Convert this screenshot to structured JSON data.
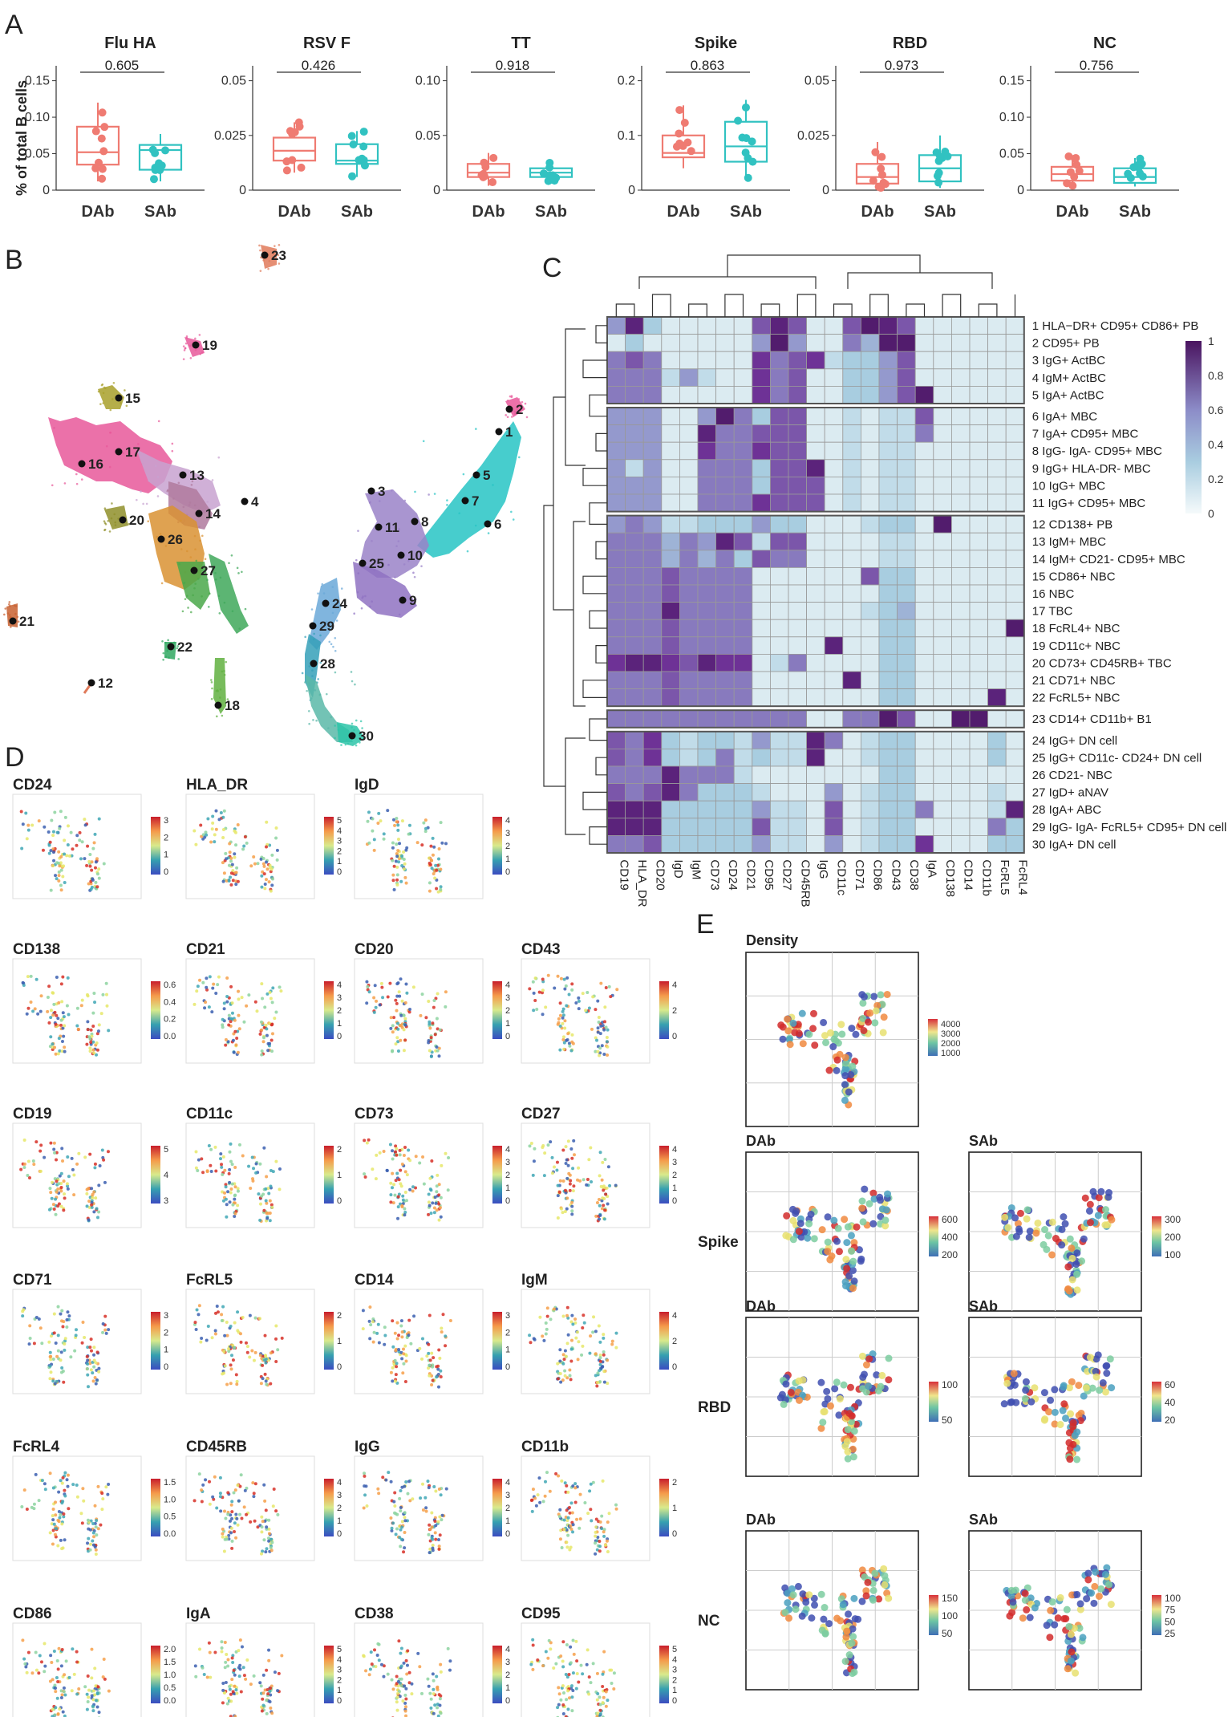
{
  "panel_letters": {
    "a": "A",
    "b": "B",
    "c": "C",
    "d": "D",
    "e": "E"
  },
  "panel_a": {
    "y_axis_label": "% of total B cells",
    "groups": [
      "DAb",
      "SAb"
    ],
    "group_colors": [
      "#ef7b72",
      "#31c2c1"
    ],
    "plots": [
      {
        "title": "Flu HA",
        "pval": "0.605",
        "ymax": 0.15,
        "ticks": [
          "0",
          "0.05",
          "0.10",
          "0.15"
        ],
        "box": [
          {
            "q1": 0.035,
            "med": 0.052,
            "q3": 0.087,
            "lo": 0.012,
            "hi": 0.12
          },
          {
            "q1": 0.028,
            "med": 0.055,
            "q3": 0.062,
            "lo": 0.012,
            "hi": 0.077
          }
        ]
      },
      {
        "title": "RSV F",
        "pval": "0.426",
        "ymax": 0.05,
        "ticks": [
          "0",
          "0.025",
          "0.05"
        ],
        "box": [
          {
            "q1": 0.0135,
            "med": 0.018,
            "q3": 0.024,
            "lo": 0.008,
            "hi": 0.031
          },
          {
            "q1": 0.012,
            "med": 0.0135,
            "q3": 0.021,
            "lo": 0.006,
            "hi": 0.027
          }
        ]
      },
      {
        "title": "TT",
        "pval": "0.918",
        "ymax": 0.1,
        "ticks": [
          "0",
          "0.05",
          "0.10"
        ],
        "box": [
          {
            "q1": 0.012,
            "med": 0.016,
            "q3": 0.024,
            "lo": 0.004,
            "hi": 0.034
          },
          {
            "q1": 0.012,
            "med": 0.016,
            "q3": 0.02,
            "lo": 0.006,
            "hi": 0.026
          }
        ]
      },
      {
        "title": "Spike",
        "pval": "0.863",
        "ymax": 0.2,
        "ticks": [
          "0",
          "0.1",
          "0.2"
        ],
        "box": [
          {
            "q1": 0.06,
            "med": 0.068,
            "q3": 0.1,
            "lo": 0.04,
            "hi": 0.155
          },
          {
            "q1": 0.052,
            "med": 0.08,
            "q3": 0.125,
            "lo": 0.018,
            "hi": 0.165
          }
        ]
      },
      {
        "title": "RBD",
        "pval": "0.973",
        "ymax": 0.05,
        "ticks": [
          "0",
          "0.025",
          "0.05"
        ],
        "box": [
          {
            "q1": 0.003,
            "med": 0.006,
            "q3": 0.012,
            "lo": 0.001,
            "hi": 0.022
          },
          {
            "q1": 0.004,
            "med": 0.01,
            "q3": 0.016,
            "lo": 0.001,
            "hi": 0.025
          }
        ]
      },
      {
        "title": "NC",
        "pval": "0.756",
        "ymax": 0.15,
        "ticks": [
          "0",
          "0.05",
          "0.10",
          "0.15"
        ],
        "box": [
          {
            "q1": 0.013,
            "med": 0.022,
            "q3": 0.032,
            "lo": 0.006,
            "hi": 0.048
          },
          {
            "q1": 0.01,
            "med": 0.018,
            "q3": 0.03,
            "lo": 0.005,
            "hi": 0.044
          }
        ]
      }
    ]
  },
  "panel_b": {
    "cluster_labels": [
      "1",
      "2",
      "3",
      "4",
      "5",
      "6",
      "7",
      "8",
      "9",
      "10",
      "11",
      "12",
      "13",
      "14",
      "15",
      "16",
      "17",
      "18",
      "19",
      "20",
      "21",
      "22",
      "23",
      "24",
      "25",
      "26",
      "27",
      "28",
      "29",
      "30"
    ]
  },
  "panel_c": {
    "row_labels": [
      "1 HLA−DR+ CD95+ CD86+ PB",
      "2 CD95+ PB",
      "3 IgG+ ActBC",
      "4 IgM+ ActBC",
      "5 IgA+ ActBC",
      "6 IgA+ MBC",
      "7 IgA+ CD95+ MBC",
      "8 IgG- IgA- CD95+ MBC",
      "9 IgG+ HLA-DR- MBC",
      "10 IgG+ MBC",
      "11 IgG+ CD95+ MBC",
      "12 CD138+ PB",
      "13 IgM+ MBC",
      "14 IgM+ CD21- CD95+ MBC",
      "15 CD86+ NBC",
      "16 NBC",
      "17 TBC",
      "18 FcRL4+ NBC",
      "19 CD11c+ NBC",
      "20 CD73+ CD45RB+ TBC",
      "21 CD71+ NBC",
      "22 FcRL5+ NBC",
      "23 CD14+ CD11b+ B1",
      "24 IgG+ DN cell",
      "25 IgG+ CD11c- CD24+ DN cell",
      "26 CD21- NBC",
      "27 IgD+ aNAV",
      "28 IgA+ ABC",
      "29 IgG- IgA- FcRL5+ CD95+ DN cell",
      "30 IgA+ DN cell"
    ],
    "col_labels": [
      "CD19",
      "HLA_DR",
      "CD20",
      "IgD",
      "IgM",
      "CD73",
      "CD24",
      "CD21",
      "CD95",
      "CD27",
      "CD45RB",
      "IgG",
      "CD11c",
      "CD71",
      "CD86",
      "CD43",
      "CD38",
      "IgA",
      "CD138",
      "CD14",
      "CD11b",
      "FcRL5",
      "FcRL4"
    ],
    "legend_ticks": [
      "1",
      "0.8",
      "0.6",
      "0.4",
      "0.2",
      "0"
    ],
    "values": [
      [
        0.5,
        0.9,
        0.3,
        0.1,
        0.1,
        0.1,
        0.1,
        0.1,
        0.7,
        0.9,
        0.7,
        0.1,
        0.1,
        0.7,
        0.95,
        0.9,
        0.7,
        0.1,
        0.1,
        0.1,
        0.1,
        0.1,
        0.1
      ],
      [
        0.1,
        0.3,
        0.1,
        0.1,
        0.1,
        0.1,
        0.1,
        0.1,
        0.5,
        0.95,
        0.5,
        0.1,
        0.1,
        0.6,
        0.4,
        0.95,
        0.95,
        0.1,
        0.1,
        0.1,
        0.1,
        0.1,
        0.1
      ],
      [
        0.6,
        0.7,
        0.6,
        0.1,
        0.1,
        0.1,
        0.1,
        0.1,
        0.8,
        0.6,
        0.7,
        0.8,
        0.2,
        0.3,
        0.3,
        0.5,
        0.7,
        0.1,
        0.1,
        0.1,
        0.1,
        0.1,
        0.1
      ],
      [
        0.6,
        0.6,
        0.6,
        0.2,
        0.5,
        0.2,
        0.1,
        0.1,
        0.8,
        0.6,
        0.7,
        0.1,
        0.1,
        0.3,
        0.3,
        0.5,
        0.7,
        0.1,
        0.1,
        0.1,
        0.1,
        0.1,
        0.1
      ],
      [
        0.6,
        0.6,
        0.6,
        0.1,
        0.1,
        0.1,
        0.1,
        0.1,
        0.8,
        0.6,
        0.7,
        0.1,
        0.1,
        0.3,
        0.3,
        0.5,
        0.7,
        0.95,
        0.1,
        0.1,
        0.1,
        0.1,
        0.1
      ],
      [
        0.5,
        0.5,
        0.5,
        0.1,
        0.1,
        0.5,
        0.95,
        0.6,
        0.3,
        0.7,
        0.7,
        0.1,
        0.1,
        0.2,
        0.1,
        0.2,
        0.2,
        0.7,
        0.1,
        0.1,
        0.1,
        0.1,
        0.1
      ],
      [
        0.5,
        0.5,
        0.5,
        0.1,
        0.1,
        0.9,
        0.6,
        0.6,
        0.7,
        0.7,
        0.7,
        0.1,
        0.1,
        0.2,
        0.1,
        0.2,
        0.2,
        0.6,
        0.1,
        0.1,
        0.1,
        0.1,
        0.1
      ],
      [
        0.5,
        0.5,
        0.5,
        0.1,
        0.1,
        0.8,
        0.6,
        0.6,
        0.8,
        0.7,
        0.7,
        0.1,
        0.1,
        0.2,
        0.1,
        0.2,
        0.2,
        0.1,
        0.1,
        0.1,
        0.1,
        0.1,
        0.1
      ],
      [
        0.5,
        0.2,
        0.5,
        0.1,
        0.1,
        0.6,
        0.6,
        0.6,
        0.3,
        0.7,
        0.7,
        0.9,
        0.1,
        0.2,
        0.1,
        0.2,
        0.2,
        0.1,
        0.1,
        0.1,
        0.1,
        0.1,
        0.1
      ],
      [
        0.5,
        0.5,
        0.5,
        0.1,
        0.1,
        0.6,
        0.6,
        0.6,
        0.3,
        0.7,
        0.7,
        0.7,
        0.1,
        0.2,
        0.1,
        0.2,
        0.2,
        0.1,
        0.1,
        0.1,
        0.1,
        0.1,
        0.1
      ],
      [
        0.5,
        0.5,
        0.5,
        0.1,
        0.1,
        0.6,
        0.6,
        0.6,
        0.8,
        0.7,
        0.7,
        0.7,
        0.1,
        0.2,
        0.1,
        0.2,
        0.2,
        0.1,
        0.1,
        0.1,
        0.1,
        0.1,
        0.1
      ],
      [
        0.5,
        0.6,
        0.5,
        0.2,
        0.2,
        0.3,
        0.3,
        0.3,
        0.5,
        0.3,
        0.3,
        0.1,
        0.1,
        0.1,
        0.2,
        0.3,
        0.3,
        0.1,
        0.95,
        0.1,
        0.1,
        0.1,
        0.1
      ],
      [
        0.6,
        0.6,
        0.6,
        0.4,
        0.6,
        0.5,
        0.9,
        0.7,
        0.2,
        0.7,
        0.7,
        0.1,
        0.1,
        0.1,
        0.1,
        0.2,
        0.2,
        0.1,
        0.1,
        0.1,
        0.1,
        0.1,
        0.1
      ],
      [
        0.6,
        0.6,
        0.6,
        0.4,
        0.6,
        0.4,
        0.6,
        0.3,
        0.7,
        0.6,
        0.6,
        0.1,
        0.1,
        0.1,
        0.1,
        0.2,
        0.2,
        0.1,
        0.1,
        0.1,
        0.1,
        0.1,
        0.1
      ],
      [
        0.6,
        0.6,
        0.6,
        0.7,
        0.6,
        0.6,
        0.6,
        0.6,
        0.1,
        0.1,
        0.1,
        0.1,
        0.1,
        0.1,
        0.7,
        0.3,
        0.3,
        0.1,
        0.1,
        0.1,
        0.1,
        0.1,
        0.1
      ],
      [
        0.6,
        0.6,
        0.6,
        0.7,
        0.6,
        0.6,
        0.6,
        0.6,
        0.1,
        0.1,
        0.1,
        0.1,
        0.1,
        0.1,
        0.1,
        0.3,
        0.3,
        0.1,
        0.1,
        0.1,
        0.1,
        0.1,
        0.1
      ],
      [
        0.6,
        0.6,
        0.6,
        0.9,
        0.6,
        0.6,
        0.6,
        0.6,
        0.1,
        0.1,
        0.1,
        0.1,
        0.1,
        0.1,
        0.2,
        0.3,
        0.4,
        0.1,
        0.1,
        0.1,
        0.1,
        0.1,
        0.1
      ],
      [
        0.6,
        0.6,
        0.6,
        0.7,
        0.6,
        0.6,
        0.6,
        0.6,
        0.1,
        0.1,
        0.1,
        0.1,
        0.1,
        0.1,
        0.1,
        0.3,
        0.3,
        0.1,
        0.1,
        0.1,
        0.1,
        0.1,
        0.95
      ],
      [
        0.6,
        0.6,
        0.6,
        0.7,
        0.6,
        0.6,
        0.6,
        0.6,
        0.1,
        0.1,
        0.1,
        0.1,
        0.9,
        0.1,
        0.1,
        0.3,
        0.3,
        0.1,
        0.1,
        0.1,
        0.1,
        0.1,
        0.1
      ],
      [
        0.8,
        0.9,
        0.9,
        0.8,
        0.7,
        0.9,
        0.8,
        0.8,
        0.1,
        0.2,
        0.6,
        0.1,
        0.1,
        0.1,
        0.1,
        0.3,
        0.3,
        0.1,
        0.1,
        0.1,
        0.1,
        0.1,
        0.1
      ],
      [
        0.6,
        0.6,
        0.6,
        0.7,
        0.6,
        0.6,
        0.6,
        0.6,
        0.1,
        0.1,
        0.1,
        0.1,
        0.1,
        0.9,
        0.1,
        0.3,
        0.3,
        0.1,
        0.1,
        0.1,
        0.1,
        0.1,
        0.1
      ],
      [
        0.6,
        0.6,
        0.6,
        0.7,
        0.6,
        0.6,
        0.6,
        0.6,
        0.1,
        0.1,
        0.1,
        0.1,
        0.1,
        0.1,
        0.1,
        0.3,
        0.3,
        0.1,
        0.1,
        0.1,
        0.1,
        0.9,
        0.1
      ],
      [
        0.6,
        0.6,
        0.6,
        0.6,
        0.6,
        0.6,
        0.6,
        0.6,
        0.6,
        0.6,
        0.6,
        0.1,
        0.1,
        0.6,
        0.6,
        0.95,
        0.7,
        0.1,
        0.1,
        0.95,
        0.95,
        0.1,
        0.1
      ],
      [
        0.7,
        0.6,
        0.8,
        0.3,
        0.2,
        0.3,
        0.3,
        0.2,
        0.5,
        0.2,
        0.2,
        0.9,
        0.6,
        0.1,
        0.2,
        0.3,
        0.3,
        0.1,
        0.1,
        0.1,
        0.1,
        0.3,
        0.1
      ],
      [
        0.7,
        0.6,
        0.8,
        0.3,
        0.2,
        0.3,
        0.6,
        0.2,
        0.3,
        0.2,
        0.2,
        0.9,
        0.1,
        0.1,
        0.2,
        0.3,
        0.3,
        0.1,
        0.1,
        0.1,
        0.1,
        0.3,
        0.1
      ],
      [
        0.6,
        0.6,
        0.6,
        0.9,
        0.6,
        0.6,
        0.6,
        0.2,
        0.1,
        0.1,
        0.1,
        0.1,
        0.1,
        0.1,
        0.1,
        0.3,
        0.3,
        0.1,
        0.1,
        0.1,
        0.1,
        0.1,
        0.1
      ],
      [
        0.7,
        0.6,
        0.7,
        0.9,
        0.6,
        0.3,
        0.3,
        0.3,
        0.2,
        0.1,
        0.1,
        0.1,
        0.5,
        0.1,
        0.2,
        0.3,
        0.3,
        0.1,
        0.1,
        0.1,
        0.1,
        0.2,
        0.1
      ],
      [
        0.9,
        0.9,
        0.9,
        0.3,
        0.3,
        0.3,
        0.3,
        0.3,
        0.5,
        0.2,
        0.2,
        0.1,
        0.7,
        0.1,
        0.2,
        0.3,
        0.3,
        0.6,
        0.1,
        0.1,
        0.1,
        0.2,
        0.9
      ],
      [
        0.9,
        0.9,
        0.9,
        0.3,
        0.3,
        0.3,
        0.3,
        0.3,
        0.7,
        0.2,
        0.2,
        0.1,
        0.7,
        0.1,
        0.2,
        0.3,
        0.3,
        0.1,
        0.1,
        0.1,
        0.1,
        0.6,
        0.3
      ],
      [
        0.6,
        0.6,
        0.7,
        0.3,
        0.3,
        0.3,
        0.3,
        0.3,
        0.5,
        0.2,
        0.2,
        0.1,
        0.5,
        0.1,
        0.2,
        0.3,
        0.3,
        0.8,
        0.1,
        0.1,
        0.1,
        0.3,
        0.3
      ]
    ]
  },
  "panel_d": {
    "plots": [
      {
        "title": "CD24",
        "ticks": [
          "3",
          "2",
          "1",
          "0"
        ]
      },
      {
        "title": "HLA_DR",
        "ticks": [
          "5",
          "4",
          "3",
          "2",
          "1",
          "0"
        ]
      },
      {
        "title": "IgD",
        "ticks": [
          "4",
          "3",
          "2",
          "1",
          "0"
        ]
      },
      {
        "title": "CD138",
        "ticks": [
          "0.6",
          "0.4",
          "0.2",
          "0.0"
        ]
      },
      {
        "title": "CD21",
        "ticks": [
          "4",
          "3",
          "2",
          "1",
          "0"
        ]
      },
      {
        "title": "CD20",
        "ticks": [
          "4",
          "3",
          "2",
          "1",
          "0"
        ]
      },
      {
        "title": "CD43",
        "ticks": [
          "4",
          "2",
          "0"
        ]
      },
      {
        "title": "CD19",
        "ticks": [
          "5",
          "4",
          "3"
        ]
      },
      {
        "title": "CD11c",
        "ticks": [
          "2",
          "1",
          "0"
        ]
      },
      {
        "title": "CD73",
        "ticks": [
          "4",
          "3",
          "2",
          "1",
          "0"
        ]
      },
      {
        "title": "CD27",
        "ticks": [
          "4",
          "3",
          "2",
          "1",
          "0"
        ]
      },
      {
        "title": "CD71",
        "ticks": [
          "3",
          "2",
          "1",
          "0"
        ]
      },
      {
        "title": "FcRL5",
        "ticks": [
          "2",
          "1",
          "0"
        ]
      },
      {
        "title": "CD14",
        "ticks": [
          "3",
          "2",
          "1",
          "0"
        ]
      },
      {
        "title": "IgM",
        "ticks": [
          "4",
          "2",
          "0"
        ]
      },
      {
        "title": "FcRL4",
        "ticks": [
          "1.5",
          "1.0",
          "0.5",
          "0.0"
        ]
      },
      {
        "title": "CD45RB",
        "ticks": [
          "4",
          "3",
          "2",
          "1",
          "0"
        ]
      },
      {
        "title": "IgG",
        "ticks": [
          "4",
          "3",
          "2",
          "1",
          "0"
        ]
      },
      {
        "title": "CD11b",
        "ticks": [
          "2",
          "1",
          "0"
        ]
      },
      {
        "title": "CD86",
        "ticks": [
          "2.0",
          "1.5",
          "1.0",
          "0.5",
          "0.0"
        ]
      },
      {
        "title": "IgA",
        "ticks": [
          "5",
          "4",
          "3",
          "2",
          "1",
          "0"
        ]
      },
      {
        "title": "CD38",
        "ticks": [
          "4",
          "3",
          "2",
          "1",
          "0"
        ]
      },
      {
        "title": "CD95",
        "ticks": [
          "5",
          "4",
          "3",
          "2",
          "1",
          "0"
        ]
      }
    ]
  },
  "panel_e": {
    "density_title": "Density",
    "density_ticks": [
      "4000",
      "3000",
      "2000",
      "1000"
    ],
    "col_headers": [
      "DAb",
      "SAb"
    ],
    "row_labels": [
      "Spike",
      "RBD",
      "NC"
    ],
    "ticks": [
      [
        [
          "600",
          "400",
          "200"
        ],
        [
          "300",
          "200",
          "100"
        ]
      ],
      [
        [
          "100",
          "50"
        ],
        [
          "60",
          "40",
          "20"
        ]
      ],
      [
        [
          "150",
          "100",
          "50"
        ],
        [
          "100",
          "75",
          "50",
          "25"
        ]
      ]
    ]
  }
}
